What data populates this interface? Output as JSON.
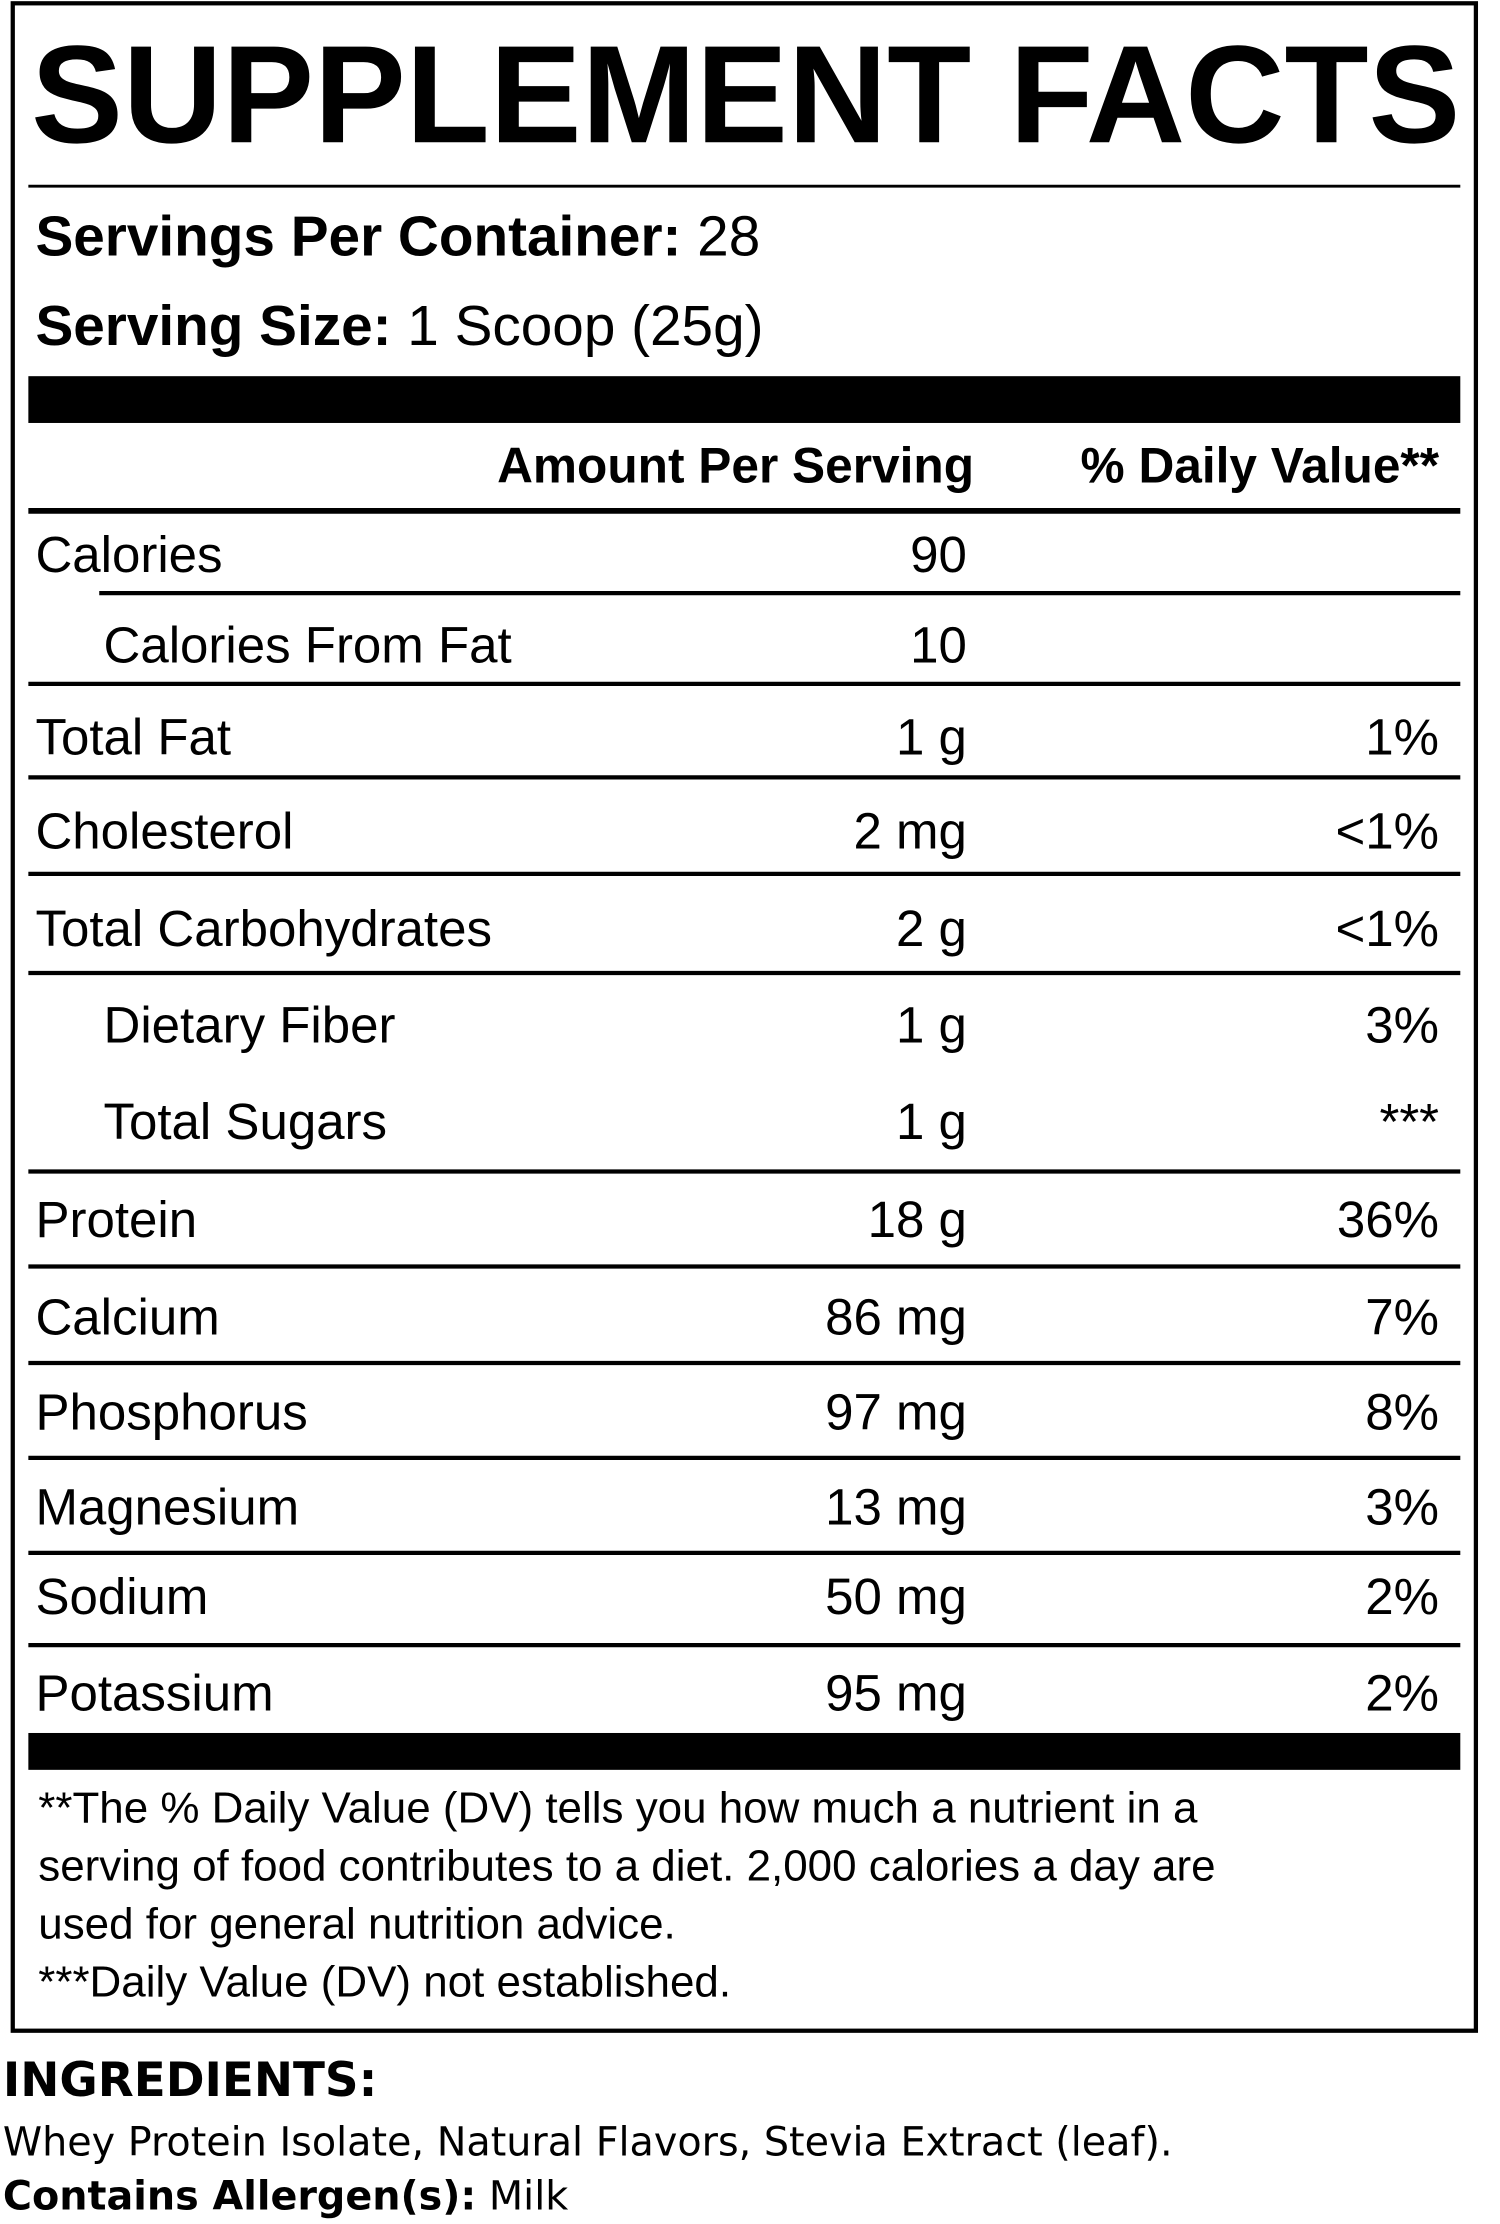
{
  "header": {
    "title": "SUPPLEMENT FACTS",
    "servings_label": "Servings Per Container:",
    "servings_value": "28",
    "size_label": "Serving Size:",
    "size_value": "1 Scoop (25g)"
  },
  "table": {
    "columns": [
      "Amount Per Serving",
      "% Daily Value**"
    ],
    "rows": [
      [
        "Calories",
        "90"
      ],
      [
        "Calories From Fat",
        "10"
      ],
      [
        "Total Fat",
        "1 g",
        "1%"
      ],
      [
        "Cholesterol",
        "2 mg",
        "<1%"
      ],
      [
        "Total Carbohydrates",
        "2 g",
        "<1%"
      ],
      [
        "Dietary Fiber",
        "1 g",
        "3%"
      ],
      [
        "Total Sugars",
        "1 g",
        "***"
      ],
      [
        "Protein",
        "18 g",
        "36%"
      ],
      [
        "Calcium",
        "86 mg",
        "7%"
      ],
      [
        "Phosphorus",
        "97 mg",
        "8%"
      ],
      [
        "Magnesium",
        "13 mg",
        "3%"
      ],
      [
        "Sodium",
        "50 mg",
        "2%"
      ],
      [
        "Potassium",
        "95 mg",
        "2%"
      ]
    ]
  },
  "footnotes": [
    "**The % Daily Value (DV) tells you how much a nutrient in a",
    "serving of food contributes to a diet. 2,000 calories a day are",
    "used for general nutrition advice.",
    "***Daily Value (DV) not established."
  ],
  "ingredients": {
    "heading": "INGREDIENTS:",
    "text": "Whey Protein Isolate, Natural Flavors, Stevia Extract (leaf).",
    "allergen_label": "Contains Allergen(s):",
    "allergen_value": "Milk"
  }
}
